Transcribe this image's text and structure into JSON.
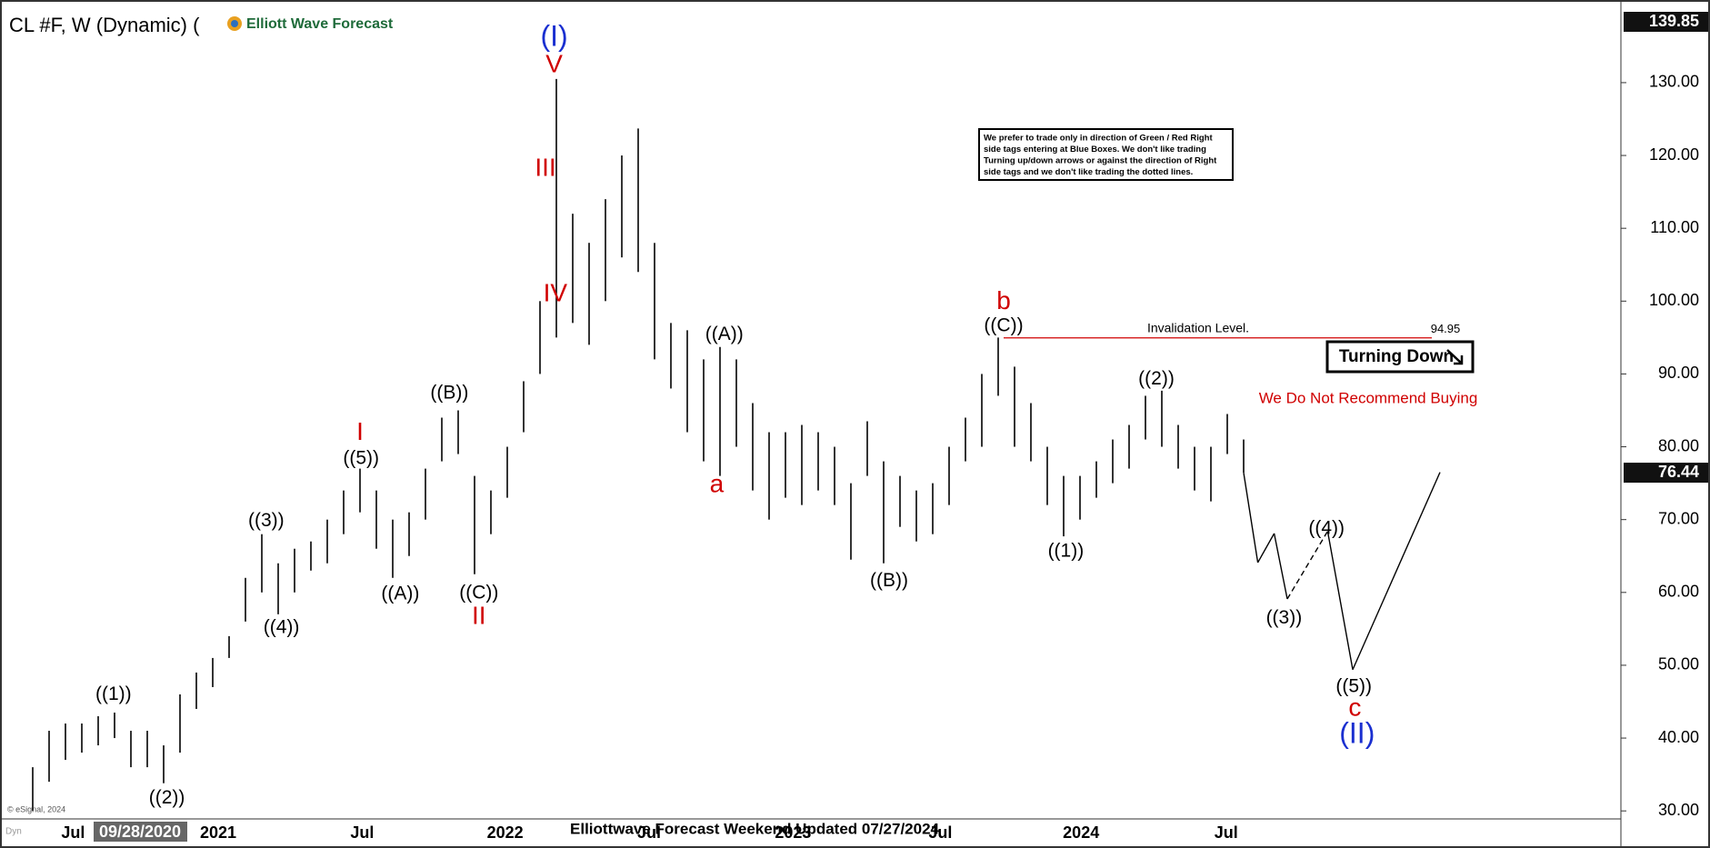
{
  "chart_data": {
    "type": "ohlc",
    "title": "CL #F, W (Dynamic) (",
    "logo": "Elliott Wave Forecast",
    "color": "#000000",
    "lows": [
      30,
      34,
      37,
      38,
      39,
      40,
      36,
      36,
      33.8,
      38,
      44,
      47,
      51,
      56,
      60,
      57,
      60,
      63,
      64,
      68,
      71,
      66,
      62,
      65,
      70,
      78,
      79,
      62.5,
      68,
      73,
      82,
      90,
      95,
      97,
      94,
      100,
      106,
      104,
      92,
      88,
      82,
      78,
      76,
      80,
      74,
      70,
      73,
      72,
      74,
      72,
      64.5,
      76,
      64,
      69,
      67,
      68,
      72,
      78,
      80,
      87,
      80,
      78,
      72,
      67.7,
      70,
      73,
      75,
      77,
      81,
      80,
      77,
      74,
      72.5,
      79,
      76.44
    ],
    "highs": [
      36,
      41,
      42,
      42,
      43,
      43.5,
      41,
      41,
      39,
      46,
      49,
      51,
      54,
      62,
      68,
      64,
      66,
      67,
      70,
      74,
      77,
      74,
      70,
      71,
      77,
      84,
      85,
      76,
      74,
      80,
      89,
      100,
      130.5,
      112,
      108,
      114,
      120,
      123.7,
      108,
      97,
      96,
      92,
      93.7,
      92,
      86,
      82,
      82,
      83,
      82,
      80,
      75,
      83.5,
      78,
      76,
      74,
      75,
      80,
      84,
      90,
      95,
      91,
      86,
      80,
      76,
      76,
      78,
      81,
      83,
      87,
      87.7,
      83,
      80,
      80,
      84.5,
      81
    ],
    "ylim": [
      28.9,
      139.85
    ],
    "yticks": [
      {
        "value": 30,
        "label": "30.00"
      },
      {
        "value": 40,
        "label": "40.00"
      },
      {
        "value": 50,
        "label": "50.00"
      },
      {
        "value": 60,
        "label": "60.00"
      },
      {
        "value": 70,
        "label": "70.00"
      },
      {
        "value": 80,
        "label": "80.00"
      },
      {
        "value": 90,
        "label": "90.00"
      },
      {
        "value": 100,
        "label": "100.00"
      },
      {
        "value": 110,
        "label": "110.00"
      },
      {
        "value": 120,
        "label": "120.00"
      },
      {
        "value": 130,
        "label": "130.00"
      }
    ],
    "xaxis_labels": [
      "Jul",
      "2021",
      "Jul",
      "2022",
      "Jul",
      "2023",
      "Jul",
      "2024",
      "Jul"
    ],
    "crosshair_date": "09/28/2020",
    "last_price": 76.44,
    "invalidation": {
      "label": "Invalidation Level.",
      "value": 94.95
    },
    "projection": [
      76.44,
      64.1,
      68.1,
      59.1,
      68.4,
      49.4,
      76.5
    ],
    "annotations": [
      {
        "text": "(I)",
        "color": "#1a2fd0"
      },
      {
        "text": "V",
        "color": "#d00000"
      },
      {
        "text": "III",
        "color": "#d00000"
      },
      {
        "text": "IV",
        "color": "#d00000"
      },
      {
        "text": "((1))",
        "color": "#000000"
      },
      {
        "text": "((2))",
        "color": "#000000"
      },
      {
        "text": "((3))",
        "color": "#000000"
      },
      {
        "text": "((4))",
        "color": "#000000"
      },
      {
        "text": "((5))",
        "color": "#000000"
      },
      {
        "text": "I",
        "color": "#d00000"
      },
      {
        "text": "((A))",
        "color": "#000000"
      },
      {
        "text": "((B))",
        "color": "#000000"
      },
      {
        "text": "((C))",
        "color": "#000000"
      },
      {
        "text": "II",
        "color": "#d00000"
      },
      {
        "text": "((A))",
        "color": "#000000"
      },
      {
        "text": "a",
        "color": "#d00000"
      },
      {
        "text": "((B))",
        "color": "#000000"
      },
      {
        "text": "((C))",
        "color": "#000000"
      },
      {
        "text": "b",
        "color": "#d00000"
      },
      {
        "text": "((1))",
        "color": "#000000"
      },
      {
        "text": "((2))",
        "color": "#000000"
      },
      {
        "text": "((3))",
        "color": "#000000"
      },
      {
        "text": "((4))",
        "color": "#000000"
      },
      {
        "text": "((5))",
        "color": "#000000"
      },
      {
        "text": "c",
        "color": "#d00000"
      },
      {
        "text": "(II)",
        "color": "#1a2fd0"
      }
    ],
    "note": [
      "We prefer to trade only in direction of Green / Red Right",
      "side tags entering at Blue Boxes. We don't like trading",
      "Turning up/down arrows or against the direction of Right",
      "side tags and we don't like trading the dotted lines."
    ],
    "badge": "Turning Down",
    "warning": "We Do Not Recommend Buying",
    "footer": "Elliottwave Forecast Weekend Updated 07/27/2024",
    "copyright": "© eSignal, 2024",
    "dyn": "Dyn"
  }
}
